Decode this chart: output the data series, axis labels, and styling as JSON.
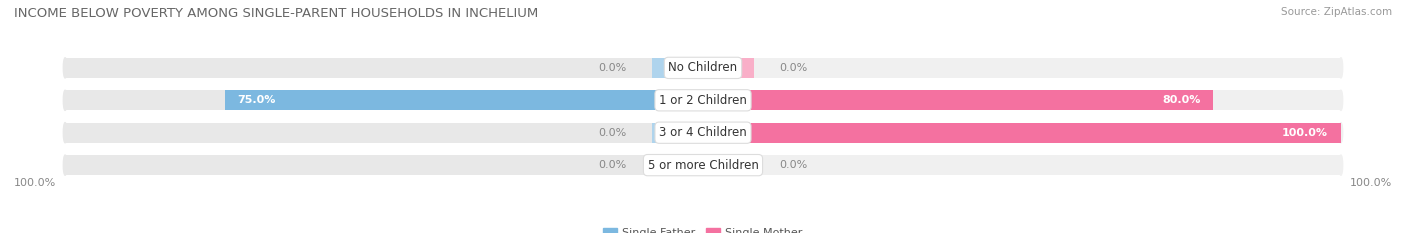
{
  "title": "INCOME BELOW POVERTY AMONG SINGLE-PARENT HOUSEHOLDS IN INCHELIUM",
  "source": "Source: ZipAtlas.com",
  "categories": [
    "No Children",
    "1 or 2 Children",
    "3 or 4 Children",
    "5 or more Children"
  ],
  "single_father": [
    0.0,
    75.0,
    0.0,
    0.0
  ],
  "single_mother": [
    0.0,
    80.0,
    100.0,
    0.0
  ],
  "father_color": "#7cb8e0",
  "mother_color": "#f471a0",
  "father_color_light": "#afd4ed",
  "mother_color_light": "#f9afc8",
  "bar_bg_color_left": "#e8e8e8",
  "bar_bg_color_right": "#f0f0f0",
  "bar_height": 0.62,
  "title_fontsize": 9.5,
  "source_fontsize": 7.5,
  "label_fontsize": 8,
  "category_fontsize": 8.5,
  "figsize": [
    14.06,
    2.33
  ],
  "dpi": 100
}
